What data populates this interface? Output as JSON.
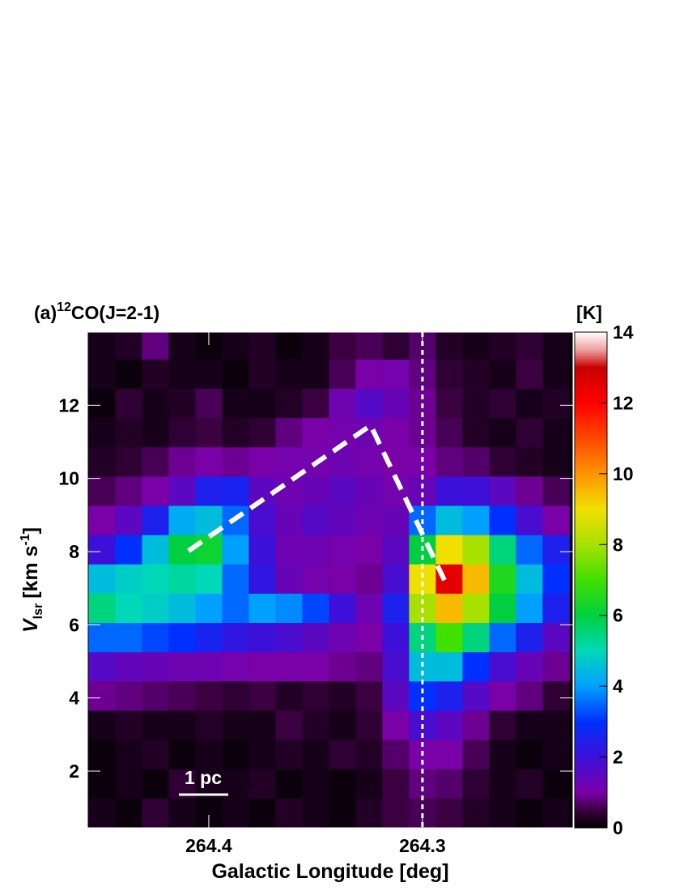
{
  "chart_data": {
    "type": "heatmap",
    "title": {
      "prefix": "(a)",
      "superscript": "12",
      "main": "CO(J=2-1)"
    },
    "xlabel": "Galactic Longitude [deg]",
    "ylabel": {
      "symbol": "V",
      "subscript": "lsr",
      "unit": "[km s",
      "superscript": "-1",
      "close": "]"
    },
    "colorbar_label": "[K]",
    "scale_bar": "1 pc",
    "xlim": [
      264.4568,
      264.2295
    ],
    "ylim": [
      0.45,
      14
    ],
    "xticks": [
      264.4,
      264.3
    ],
    "yticks": [
      2,
      4,
      6,
      8,
      10,
      12
    ],
    "clim": [
      0,
      14
    ],
    "cticks": [
      0,
      2,
      4,
      6,
      8,
      10,
      12,
      14
    ],
    "colorscale": [
      [
        0,
        "#000000"
      ],
      [
        0.5,
        "#3a0040"
      ],
      [
        1,
        "#7a00a8"
      ],
      [
        2,
        "#3c10d8"
      ],
      [
        3,
        "#0030ff"
      ],
      [
        4,
        "#00a0ff"
      ],
      [
        5,
        "#00d8b8"
      ],
      [
        6,
        "#00d040"
      ],
      [
        7,
        "#40e000"
      ],
      [
        8,
        "#a8e000"
      ],
      [
        9,
        "#f0e000"
      ],
      [
        10,
        "#ff9400"
      ],
      [
        11,
        "#ff4800"
      ],
      [
        12,
        "#ff0000"
      ],
      [
        13,
        "#c80000"
      ],
      [
        13.5,
        "#f0a0a0"
      ],
      [
        14,
        "#ffffff"
      ]
    ],
    "x": [
      264.45,
      264.4375,
      264.425,
      264.4125,
      264.4,
      264.3875,
      264.375,
      264.3625,
      264.35,
      264.3375,
      264.325,
      264.3125,
      264.3,
      264.2875,
      264.275,
      264.2625,
      264.25,
      264.2375
    ],
    "y": [
      13.65,
      12.85,
      12.05,
      11.25,
      10.45,
      9.65,
      8.85,
      8.05,
      7.25,
      6.45,
      5.65,
      4.85,
      4.05,
      3.25,
      2.45,
      1.65,
      0.85
    ],
    "z": [
      [
        0.2,
        0.3,
        0.8,
        0.2,
        0.1,
        0.2,
        0.3,
        0.1,
        0.2,
        0.5,
        0.6,
        0.4,
        0.7,
        0.3,
        0.2,
        0.3,
        0.4,
        0.2
      ],
      [
        0.2,
        0.1,
        0.3,
        0.2,
        0.2,
        0.1,
        0.3,
        0.2,
        0.2,
        0.6,
        1.0,
        1.1,
        0.8,
        0.4,
        0.3,
        0.2,
        0.5,
        0.2
      ],
      [
        0.1,
        0.4,
        0.2,
        0.3,
        0.6,
        0.2,
        0.2,
        0.3,
        0.5,
        1.2,
        1.6,
        1.3,
        0.9,
        0.5,
        0.3,
        0.4,
        0.2,
        0.3
      ],
      [
        0.2,
        0.3,
        0.2,
        0.4,
        0.5,
        0.3,
        0.4,
        0.8,
        1.0,
        1.1,
        1.2,
        1.0,
        0.9,
        0.6,
        0.3,
        0.2,
        0.4,
        0.2
      ],
      [
        0.3,
        0.4,
        0.6,
        0.9,
        1.0,
        0.9,
        1.0,
        1.1,
        1.1,
        1.2,
        1.1,
        1.0,
        1.0,
        0.8,
        0.7,
        0.4,
        0.3,
        0.2
      ],
      [
        0.6,
        0.8,
        1.0,
        1.5,
        2.5,
        2.6,
        1.5,
        1.2,
        1.3,
        1.5,
        1.3,
        1.1,
        1.3,
        2.0,
        2.0,
        1.5,
        0.9,
        0.6
      ],
      [
        1.0,
        1.5,
        2.5,
        4.2,
        4.5,
        3.5,
        1.8,
        1.3,
        1.6,
        1.4,
        1.2,
        1.3,
        3.5,
        4.5,
        4.0,
        3.0,
        1.8,
        1.0
      ],
      [
        2.0,
        3.0,
        4.5,
        6.0,
        6.2,
        4.0,
        2.0,
        1.2,
        1.2,
        1.1,
        1.0,
        1.5,
        6.0,
        9.0,
        8.0,
        5.5,
        3.5,
        2.5
      ],
      [
        4.5,
        4.8,
        5.0,
        5.2,
        5.0,
        3.5,
        2.2,
        1.3,
        1.1,
        1.0,
        0.9,
        1.8,
        9.0,
        12.5,
        9.5,
        6.5,
        4.5,
        3.0
      ],
      [
        5.5,
        5.0,
        4.8,
        4.5,
        4.0,
        3.5,
        4.0,
        3.8,
        3.2,
        2.0,
        1.2,
        2.5,
        8.0,
        9.5,
        8.0,
        6.0,
        4.0,
        2.5
      ],
      [
        3.5,
        3.5,
        3.2,
        3.0,
        2.6,
        2.2,
        2.0,
        1.8,
        1.5,
        1.2,
        1.0,
        2.0,
        5.5,
        7.0,
        5.5,
        3.5,
        2.5,
        1.5
      ],
      [
        1.6,
        1.4,
        1.3,
        1.2,
        1.2,
        1.1,
        1.0,
        1.0,
        1.0,
        0.9,
        0.8,
        1.8,
        4.5,
        4.5,
        3.0,
        1.8,
        1.3,
        0.9
      ],
      [
        0.9,
        0.8,
        0.7,
        0.6,
        0.5,
        0.4,
        0.5,
        0.3,
        0.4,
        0.3,
        0.5,
        1.5,
        3.0,
        2.5,
        1.6,
        1.0,
        0.8,
        0.4
      ],
      [
        0.2,
        0.3,
        0.2,
        0.2,
        0.3,
        0.2,
        0.2,
        0.5,
        0.3,
        0.2,
        0.4,
        1.0,
        1.8,
        1.5,
        0.9,
        0.4,
        0.2,
        0.2
      ],
      [
        0.1,
        0.2,
        0.3,
        0.1,
        0.2,
        0.1,
        0.2,
        0.3,
        0.2,
        0.4,
        0.3,
        0.7,
        1.0,
        1.0,
        0.6,
        0.2,
        0.1,
        0.2
      ],
      [
        0.1,
        0.2,
        0.1,
        0.4,
        0.2,
        0.2,
        0.3,
        0.1,
        0.2,
        0.1,
        0.2,
        0.5,
        0.8,
        0.7,
        0.4,
        0.2,
        0.3,
        0.1
      ],
      [
        0.2,
        0.1,
        0.4,
        0.2,
        0.1,
        0.2,
        0.1,
        0.3,
        0.2,
        0.1,
        0.3,
        0.5,
        0.6,
        0.5,
        0.3,
        0.2,
        0.1,
        0.2
      ]
    ],
    "path": {
      "x": [
        264.4095,
        264.3242,
        264.289
      ],
      "y": [
        8.02,
        11.45,
        7.13
      ]
    },
    "vline": 264.3
  }
}
